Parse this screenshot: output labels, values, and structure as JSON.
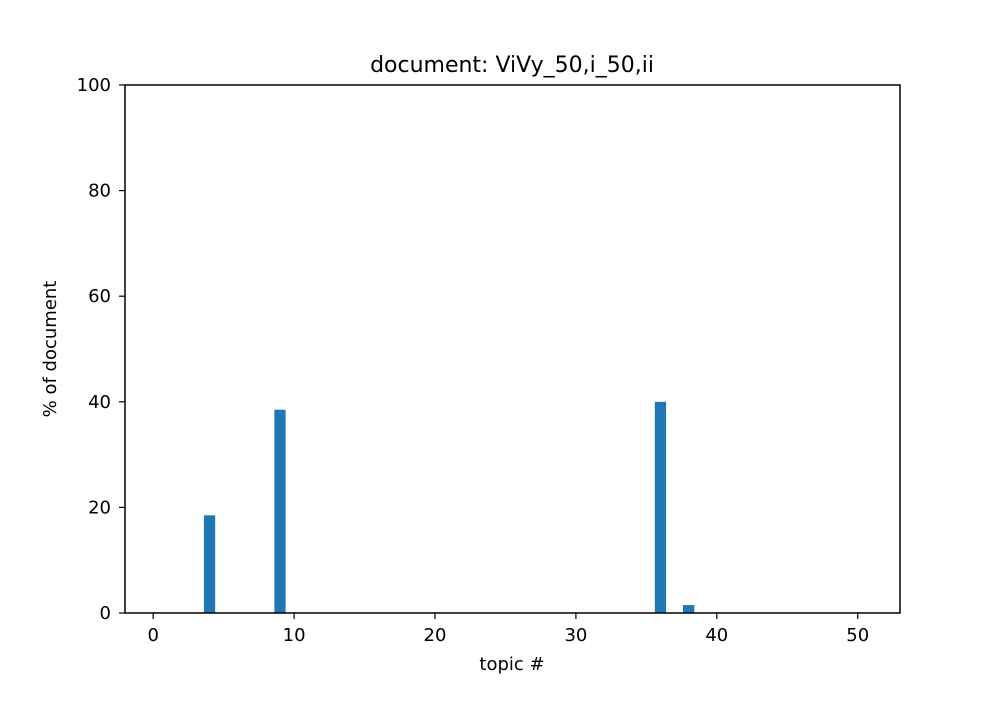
{
  "chart_data": {
    "type": "bar",
    "title": "document: ViVy_50,i_50,ii",
    "xlabel": "topic #",
    "ylabel": "% of document",
    "xlim": [
      -2,
      53
    ],
    "ylim": [
      0,
      100
    ],
    "xticks": [
      0,
      10,
      20,
      30,
      40,
      50
    ],
    "yticks": [
      0,
      20,
      40,
      60,
      80,
      100
    ],
    "bar_width": 0.8,
    "grid": false,
    "bar_color": "#1f77b4",
    "x": [
      0,
      1,
      2,
      3,
      4,
      5,
      6,
      7,
      8,
      9,
      10,
      11,
      12,
      13,
      14,
      15,
      16,
      17,
      18,
      19,
      20,
      21,
      22,
      23,
      24,
      25,
      26,
      27,
      28,
      29,
      30,
      31,
      32,
      33,
      34,
      35,
      36,
      37,
      38,
      39,
      40,
      41,
      42,
      43,
      44,
      45,
      46,
      47,
      48,
      49,
      50
    ],
    "values": [
      0,
      0,
      0,
      0,
      18.5,
      0,
      0,
      0,
      0,
      38.5,
      0,
      0,
      0,
      0,
      0,
      0,
      0,
      0,
      0,
      0,
      0,
      0,
      0,
      0,
      0,
      0,
      0,
      0,
      0,
      0,
      0,
      0,
      0,
      0,
      0,
      0,
      40,
      0,
      1.5,
      0,
      0,
      0,
      0,
      0,
      0,
      0,
      0,
      0,
      0,
      0,
      0
    ]
  }
}
